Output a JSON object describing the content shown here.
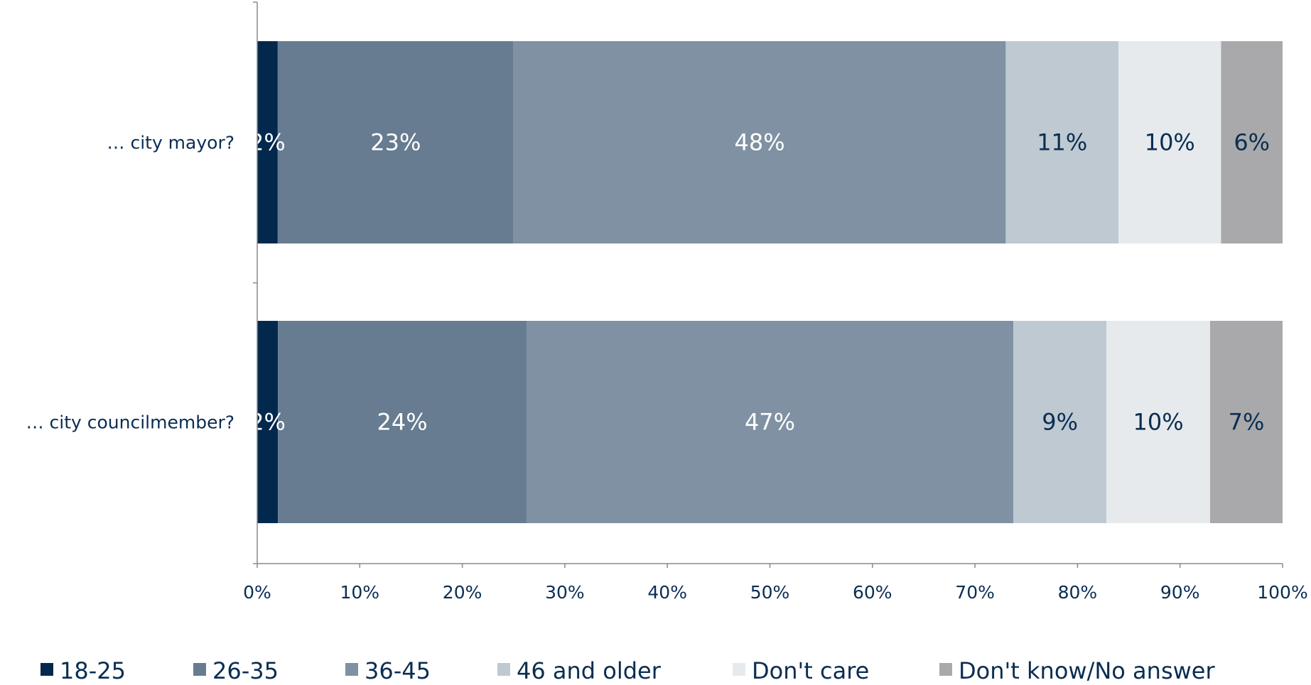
{
  "chart_data": {
    "type": "bar",
    "orientation": "horizontal",
    "stacked": true,
    "categories": [
      "… city mayor?",
      "… city councilmember?"
    ],
    "series": [
      {
        "name": "18-25",
        "color": "#03284d",
        "values": [
          2,
          2
        ],
        "labels": [
          "2%",
          "2%"
        ],
        "label_color": "#ffffff"
      },
      {
        "name": "26-35",
        "color": "#677c91",
        "values": [
          23,
          24
        ],
        "labels": [
          "23%",
          "24%"
        ],
        "label_color": "#ffffff"
      },
      {
        "name": "36-45",
        "color": "#7f91a2",
        "values": [
          48,
          47
        ],
        "labels": [
          "48%",
          "47%"
        ],
        "label_color": "#ffffff"
      },
      {
        "name": "46 and older",
        "color": "#bfc9d1",
        "values": [
          11,
          9
        ],
        "labels": [
          "11%",
          "9%"
        ],
        "label_color": "#0a2d52"
      },
      {
        "name": "Don't care",
        "color": "#e6eaed",
        "values": [
          10,
          10
        ],
        "labels": [
          "10%",
          "10%"
        ],
        "label_color": "#0a2d52"
      },
      {
        "name": "Don't know/No answer",
        "color": "#a9a9ab",
        "values": [
          6,
          7
        ],
        "labels": [
          "6%",
          "7%"
        ],
        "label_color": "#0a2d52"
      }
    ],
    "xlim": [
      0,
      100
    ],
    "x_ticks": [
      "0%",
      "10%",
      "20%",
      "30%",
      "40%",
      "50%",
      "60%",
      "70%",
      "80%",
      "90%",
      "100%"
    ],
    "grid": false,
    "legend_position": "bottom",
    "title": "",
    "xlabel": "",
    "ylabel": ""
  }
}
